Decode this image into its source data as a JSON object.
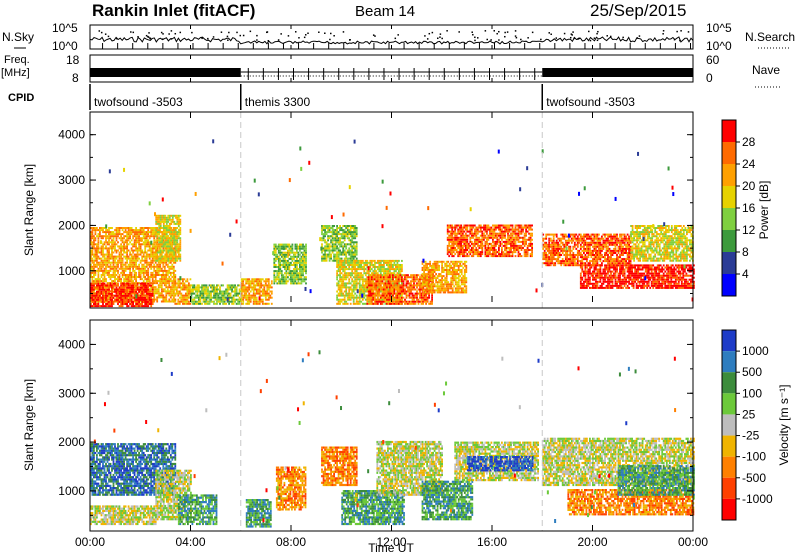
{
  "header": {
    "station": "Rankin Inlet (fitACF)",
    "beam": "Beam 14",
    "date": "25/Sep/2015"
  },
  "noise_panel": {
    "left_label": "N.Sky",
    "right_label": "N.Search",
    "left_ticks": [
      "10^5",
      "10^0"
    ],
    "right_ticks": [
      "10^5",
      "10^0"
    ]
  },
  "freq_panel": {
    "left_label_1": "Freq.",
    "left_label_2": "[MHz]",
    "right_label": "Nave",
    "left_ticks": [
      "18",
      "8"
    ],
    "right_ticks": [
      "60",
      "0"
    ]
  },
  "cpid_panel": {
    "label": "CPID",
    "segments": [
      {
        "name": "twofsound -3503",
        "start_h": 0,
        "end_h": 6
      },
      {
        "name": "themis 3300",
        "start_h": 6,
        "end_h": 18
      },
      {
        "name": "twofsound -3503",
        "start_h": 18,
        "end_h": 24
      }
    ]
  },
  "x_axis": {
    "label": "Time UT",
    "ticks": [
      "00:00",
      "04:00",
      "08:00",
      "12:00",
      "16:00",
      "20:00",
      "00:00"
    ]
  },
  "chart_data": [
    {
      "type": "heatmap",
      "title": "",
      "xlabel": "Time UT",
      "ylabel": "Slant Range [km]",
      "xlim": [
        0,
        24
      ],
      "ylim": [
        180,
        4500
      ],
      "yticks": [
        "1000",
        "2000",
        "3000",
        "4000"
      ],
      "colorbar": {
        "label": "Power [dB]",
        "ticks": [
          "28",
          "24",
          "20",
          "16",
          "12",
          "8",
          "4"
        ],
        "colors": [
          "#ff0000",
          "#ff6a00",
          "#ffa000",
          "#e6d200",
          "#7fd040",
          "#3c9a3c",
          "#2b3c96",
          "#0000ff"
        ]
      },
      "clusters": [
        {
          "t0": 0.0,
          "t1": 3.4,
          "r0": 300,
          "r1": 1950,
          "level": 5
        },
        {
          "t0": 0.0,
          "t1": 2.5,
          "r0": 200,
          "r1": 700,
          "level": 7
        },
        {
          "t0": 2.6,
          "t1": 3.6,
          "r0": 1200,
          "r1": 2200,
          "level": 4
        },
        {
          "t0": 3.3,
          "t1": 4.0,
          "r0": 250,
          "r1": 800,
          "level": 5
        },
        {
          "t0": 4.0,
          "t1": 6.0,
          "r0": 250,
          "r1": 700,
          "level": 3
        },
        {
          "t0": 6.0,
          "t1": 7.2,
          "r0": 250,
          "r1": 800,
          "level": 5
        },
        {
          "t0": 7.3,
          "t1": 8.6,
          "r0": 700,
          "r1": 1600,
          "level": 3
        },
        {
          "t0": 9.2,
          "t1": 10.6,
          "r0": 1200,
          "r1": 2000,
          "level": 3
        },
        {
          "t0": 9.8,
          "t1": 12.4,
          "r0": 250,
          "r1": 1200,
          "level": 4
        },
        {
          "t0": 11.0,
          "t1": 13.6,
          "r0": 250,
          "r1": 900,
          "level": 6
        },
        {
          "t0": 13.2,
          "t1": 15.0,
          "r0": 500,
          "r1": 1200,
          "level": 5
        },
        {
          "t0": 14.2,
          "t1": 17.6,
          "r0": 1300,
          "r1": 2000,
          "level": 6
        },
        {
          "t0": 18.0,
          "t1": 21.5,
          "r0": 1100,
          "r1": 1800,
          "level": 6
        },
        {
          "t0": 19.5,
          "t1": 24.0,
          "r0": 600,
          "r1": 1100,
          "level": 7
        },
        {
          "t0": 21.5,
          "t1": 24.0,
          "r0": 1200,
          "r1": 2000,
          "level": 4
        }
      ]
    },
    {
      "type": "heatmap",
      "title": "",
      "xlabel": "Time UT",
      "ylabel": "Slant Range [km]",
      "xlim": [
        0,
        24
      ],
      "ylim": [
        180,
        4500
      ],
      "yticks": [
        "1000",
        "2000",
        "3000",
        "4000"
      ],
      "colorbar": {
        "label": "Velocity [m s⁻¹]",
        "ticks": [
          "1000",
          "500",
          "100",
          "25",
          "-25",
          "-100",
          "-500",
          "-1000"
        ],
        "colors": [
          "#1e3cc8",
          "#2e7dbf",
          "#3c8c3c",
          "#6cc93a",
          "#bdbdbd",
          "#f0b400",
          "#ff8000",
          "#ff4000",
          "#ff0000"
        ]
      },
      "clusters": [
        {
          "t0": 0.0,
          "t1": 3.4,
          "r0": 900,
          "r1": 1950,
          "level": 7
        },
        {
          "t0": 0.0,
          "t1": 2.6,
          "r0": 300,
          "r1": 700,
          "level": 4
        },
        {
          "t0": 2.6,
          "t1": 4.0,
          "r0": 400,
          "r1": 1400,
          "level": 4
        },
        {
          "t0": 3.5,
          "t1": 5.0,
          "r0": 300,
          "r1": 900,
          "level": 6
        },
        {
          "t0": 6.2,
          "t1": 7.2,
          "r0": 250,
          "r1": 800,
          "level": 6
        },
        {
          "t0": 7.4,
          "t1": 8.6,
          "r0": 600,
          "r1": 1500,
          "level": 2
        },
        {
          "t0": 9.2,
          "t1": 10.6,
          "r0": 1100,
          "r1": 1900,
          "level": 2
        },
        {
          "t0": 10.0,
          "t1": 12.5,
          "r0": 300,
          "r1": 1000,
          "level": 6
        },
        {
          "t0": 11.4,
          "t1": 14.0,
          "r0": 900,
          "r1": 2000,
          "level": 4
        },
        {
          "t0": 13.2,
          "t1": 15.2,
          "r0": 400,
          "r1": 1200,
          "level": 6
        },
        {
          "t0": 14.5,
          "t1": 17.8,
          "r0": 1200,
          "r1": 2000,
          "level": 4
        },
        {
          "t0": 15.0,
          "t1": 17.6,
          "r0": 1400,
          "r1": 1700,
          "level": 8
        },
        {
          "t0": 18.0,
          "t1": 24.0,
          "r0": 1100,
          "r1": 2050,
          "level": 4
        },
        {
          "t0": 19.0,
          "t1": 24.0,
          "r0": 500,
          "r1": 1000,
          "level": 2
        },
        {
          "t0": 21.0,
          "t1": 24.0,
          "r0": 900,
          "r1": 1500,
          "level": 6
        }
      ]
    }
  ]
}
